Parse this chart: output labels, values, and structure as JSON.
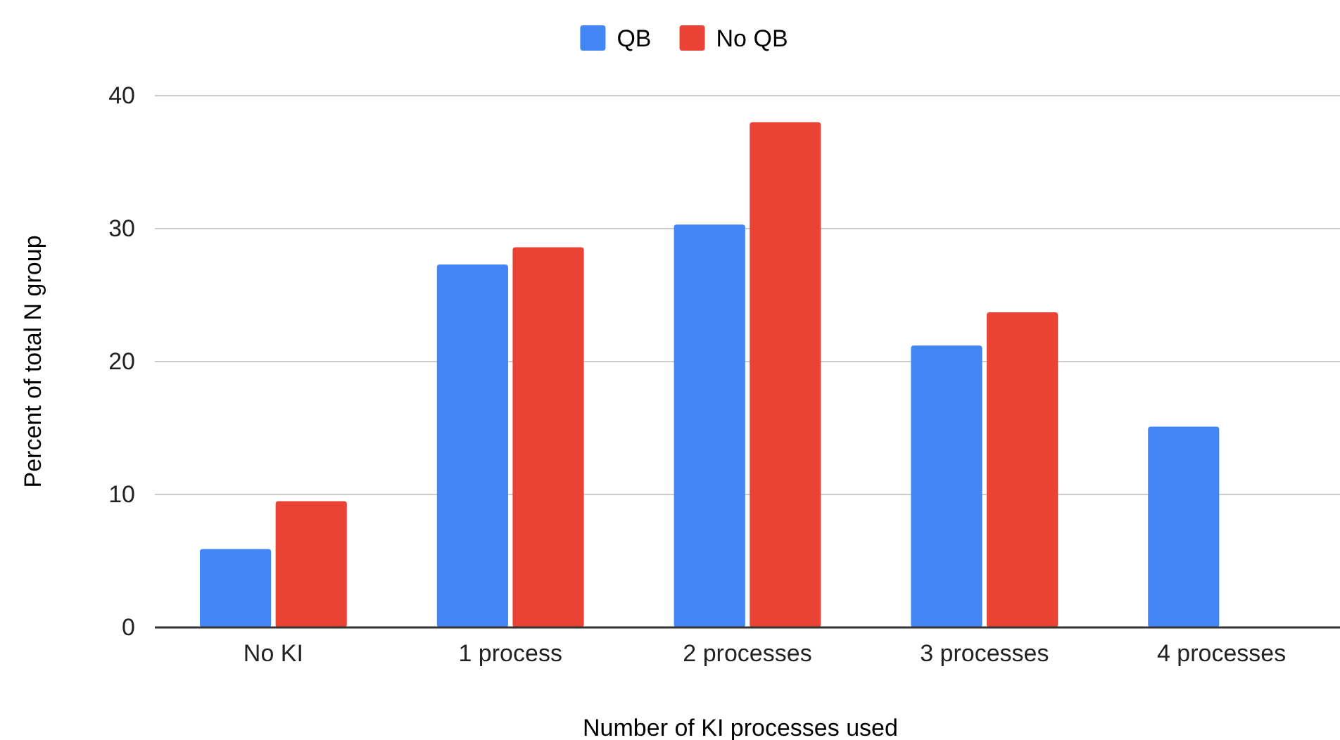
{
  "chart_data": {
    "type": "bar",
    "xlabel": "Number of KI processes used",
    "ylabel": "Percent of total N group",
    "categories": [
      "No KI",
      "1 process",
      "2 processes",
      "3 processes",
      "4 processes"
    ],
    "series": [
      {
        "name": "QB",
        "color": "#4285f4",
        "values": [
          5.9,
          27.3,
          30.3,
          21.2,
          15.1
        ]
      },
      {
        "name": "No QB",
        "color": "#ea4335",
        "values": [
          9.5,
          28.6,
          38.0,
          23.7,
          0
        ]
      }
    ],
    "ylim": [
      0,
      40
    ],
    "yticks": [
      0,
      10,
      20,
      30,
      40
    ],
    "grid": "y",
    "legend": "top"
  }
}
